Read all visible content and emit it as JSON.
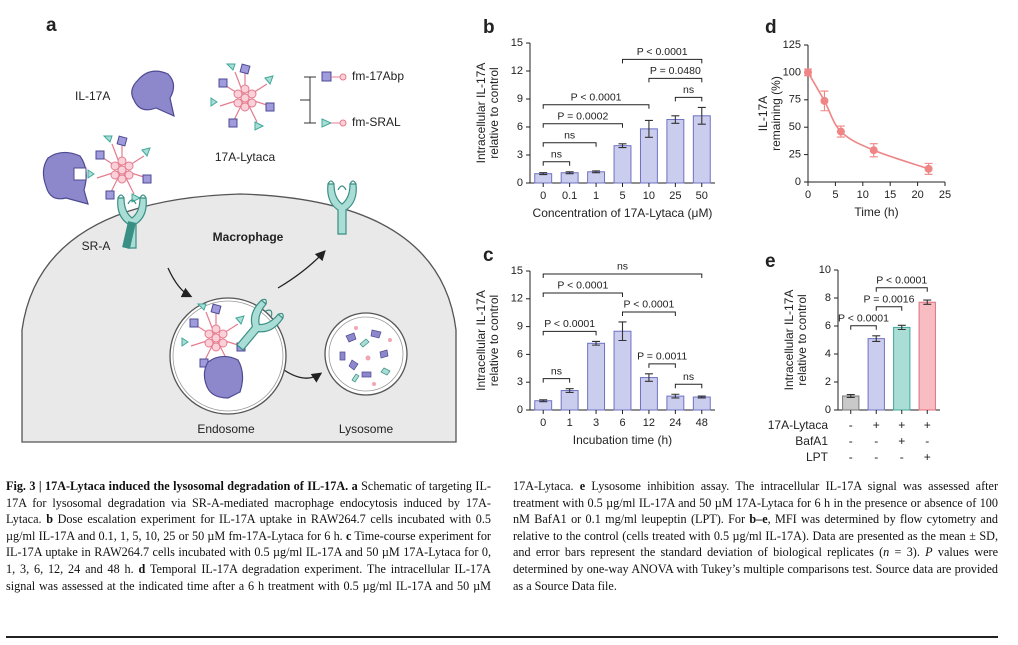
{
  "schematic": {
    "panel": "a",
    "il17a": "IL-17A",
    "fm17abp": "fm-17Abp",
    "fmsral": "fm-SRAL",
    "lytaca": "17A-Lytaca",
    "sra": "SR-A",
    "macrophage": "Macrophage",
    "endosome": "Endosome",
    "lysosome": "Lysosome"
  },
  "chart_data": [
    {
      "type": "bar",
      "panel": "b",
      "ylabel": [
        "Intracellular IL-17A",
        "relative to control"
      ],
      "xlabel": "Concentration of 17A-Lytaca (μM)",
      "categories": [
        "0",
        "0.1",
        "1",
        "5",
        "10",
        "25",
        "50"
      ],
      "values": [
        1,
        1.1,
        1.2,
        4,
        5.8,
        6.8,
        7.2
      ],
      "errors": [
        0.1,
        0.1,
        0.1,
        0.2,
        0.9,
        0.4,
        0.9
      ],
      "color": "#cbcdee",
      "edgecolor": "#6e72c2",
      "ylim": [
        0,
        15
      ],
      "yticks": [
        0,
        3,
        6,
        9,
        12,
        15
      ],
      "comparisons": [
        {
          "between": [
            0,
            1
          ],
          "label": "ns"
        },
        {
          "between": [
            0,
            2
          ],
          "label": "ns"
        },
        {
          "between": [
            0,
            3
          ],
          "label": "P = 0.0002"
        },
        {
          "between": [
            0,
            4
          ],
          "label": "P < 0.0001"
        },
        {
          "between": [
            5,
            6
          ],
          "label": "ns"
        },
        {
          "between": [
            4,
            6
          ],
          "label": "P = 0.0480"
        },
        {
          "between": [
            3,
            6
          ],
          "label": "P < 0.0001"
        }
      ]
    },
    {
      "type": "bar",
      "panel": "c",
      "ylabel": [
        "Intracellular IL-17A",
        "relative to control"
      ],
      "xlabel": "Incubation time (h)",
      "categories": [
        "0",
        "1",
        "3",
        "6",
        "12",
        "24",
        "48"
      ],
      "values": [
        1,
        2.1,
        7.2,
        8.5,
        3.5,
        1.5,
        1.4
      ],
      "errors": [
        0.1,
        0.2,
        0.2,
        1,
        0.4,
        0.2,
        0.1
      ],
      "color": "#cbcdee",
      "edgecolor": "#6e72c2",
      "ylim": [
        0,
        15
      ],
      "yticks": [
        0,
        3,
        6,
        9,
        12,
        15
      ],
      "comparisons": [
        {
          "between": [
            5,
            6
          ],
          "label": "ns"
        },
        {
          "between": [
            4,
            5
          ],
          "label": "P = 0.0011"
        },
        {
          "between": [
            3,
            5
          ],
          "label": "P < 0.0001"
        },
        {
          "between": [
            0,
            1
          ],
          "label": "ns"
        },
        {
          "between": [
            0,
            2
          ],
          "label": "P < 0.0001"
        },
        {
          "between": [
            0,
            3
          ],
          "label": "P < 0.0001"
        },
        {
          "between": [
            0,
            6
          ],
          "label": "ns"
        }
      ]
    },
    {
      "type": "line",
      "panel": "d",
      "ylabel": [
        "IL-17A",
        "remaining (%)"
      ],
      "xlabel": "Time (h)",
      "x": [
        0,
        3,
        6,
        12,
        22
      ],
      "values": [
        100,
        74,
        46,
        29,
        12
      ],
      "errors": [
        3,
        9,
        5,
        6,
        5
      ],
      "color": "#f08585",
      "xlim": [
        0,
        25
      ],
      "xticks": [
        0,
        5,
        10,
        15,
        20,
        25
      ],
      "ylim": [
        0,
        125
      ],
      "yticks": [
        0,
        25,
        50,
        75,
        100,
        125
      ]
    },
    {
      "type": "bar",
      "panel": "e",
      "ylabel": [
        "Intracellular IL-17A",
        "relative to control"
      ],
      "categories": [
        null,
        null,
        null,
        null
      ],
      "values": [
        1,
        5.1,
        5.9,
        7.7
      ],
      "errors": [
        0.1,
        0.2,
        0.15,
        0.15
      ],
      "colors": [
        "#c9c9c9",
        "#cbcdee",
        "#a9ddd6",
        "#f8bcc3"
      ],
      "edgecolors": [
        "#777777",
        "#6e72c2",
        "#3fa89a",
        "#e0707e"
      ],
      "ylim": [
        0,
        10
      ],
      "yticks": [
        0,
        2,
        4,
        6,
        8,
        10
      ],
      "conditions": [
        {
          "name": "17A-Lytaca",
          "signs": [
            "-",
            "+",
            "+",
            "+"
          ]
        },
        {
          "name": "BafA1",
          "signs": [
            "-",
            "-",
            "+",
            "-"
          ]
        },
        {
          "name": "LPT",
          "signs": [
            "-",
            "-",
            "-",
            "+"
          ]
        }
      ],
      "comparisons": [
        {
          "between": [
            0,
            1
          ],
          "label": "P < 0.0001"
        },
        {
          "between": [
            1,
            2
          ],
          "label": "P = 0.0016"
        },
        {
          "between": [
            1,
            3
          ],
          "label": "P < 0.0001"
        }
      ]
    }
  ],
  "caption": {
    "segments": [
      {
        "text": "Fig. 3 | 17A-Lytaca induced the lysosomal degradation of IL-17A. a",
        "style": "bold"
      },
      {
        "text": " Schematic of targeting IL-17A for lysosomal degradation via SR-A-mediated macrophage endocytosis induced by 17A-Lytaca. ",
        "style": "normal"
      },
      {
        "text": "b",
        "style": "bold"
      },
      {
        "text": " Dose escalation experiment for IL-17A uptake in RAW264.7 cells incubated with 0.5 µg/ml IL-17A and 0.1, 1, 5, 10, 25 or 50 µM fm-17A-Lytaca for 6 h. ",
        "style": "normal"
      },
      {
        "text": "c",
        "style": "bold"
      },
      {
        "text": " Time-course experiment for IL-17A uptake in RAW264.7 cells incubated with 0.5 µg/ml IL-17A and 50 µM 17A-Lytaca for 0, 1, 3, 6, 12, 24 and 48 h. ",
        "style": "normal"
      },
      {
        "text": "d",
        "style": "bold"
      },
      {
        "text": " Temporal IL-17A degradation experiment. The intracellular IL-17A signal was assessed at the indicated time after a 6 h treatment with 0.5 µg/ml IL-17A and 50 µM 17A-Lytaca. ",
        "style": "normal"
      },
      {
        "text": "e",
        "style": "bold"
      },
      {
        "text": " Lysosome inhibition assay. The intracellular IL-17A signal was assessed after treatment with 0.5 µg/ml IL-17A and 50 µM 17A-Lytaca for 6 h in the presence or absence of 100 nM BafA1 or 0.1 mg/ml leupeptin (LPT). For ",
        "style": "normal"
      },
      {
        "text": "b–e",
        "style": "bold"
      },
      {
        "text": ", MFI was determined by flow cytometry and relative to the control (cells treated with 0.5 µg/ml IL-17A). Data are presented as the mean ± SD, and error bars represent the standard deviation of biological replicates (",
        "style": "normal"
      },
      {
        "text": "n",
        "style": "italic"
      },
      {
        "text": " = 3). ",
        "style": "normal"
      },
      {
        "text": "P",
        "style": "italic"
      },
      {
        "text": " values were determined by one-way ANOVA with Tukey’s multiple comparisons test. Source data are provided as a Source Data file.",
        "style": "normal"
      }
    ]
  }
}
